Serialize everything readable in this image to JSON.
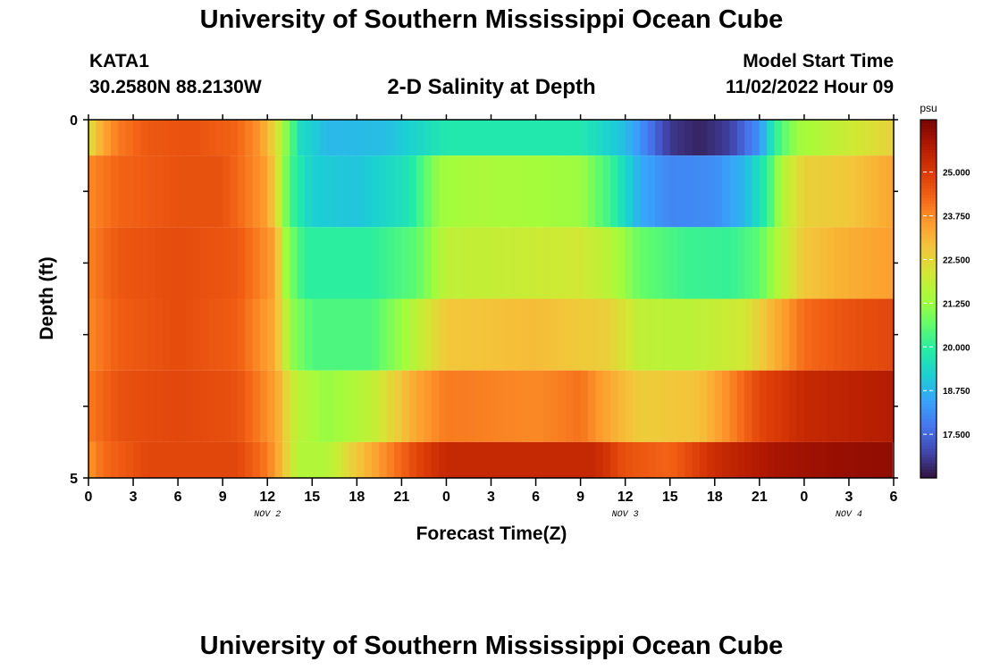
{
  "header": {
    "title": "University of Southern Mississippi Ocean Cube",
    "station": "KATA1",
    "coords": "30.2580N  88.2130W",
    "subtitle": "2-D Salinity at Depth",
    "model_start_label": "Model Start Time",
    "model_start_value": "11/02/2022 Hour 09"
  },
  "footer": {
    "title": "University of Southern Mississippi Ocean Cube"
  },
  "chart_data": {
    "type": "heatmap",
    "title": "2-D Salinity at Depth",
    "xlabel": "Forecast Time(Z)",
    "ylabel": "Depth (ft)",
    "x_tick_labels": [
      "0",
      "3",
      "6",
      "9",
      "12",
      "15",
      "18",
      "21",
      "0",
      "3",
      "6",
      "9",
      "12",
      "15",
      "18",
      "21",
      "0",
      "3",
      "6"
    ],
    "date_labels": [
      {
        "hour_index": 12,
        "label": "NOV 2"
      },
      {
        "hour_index": 36,
        "label": "NOV 3"
      },
      {
        "hour_index": 51,
        "label": "NOV 4"
      }
    ],
    "y_tick_labels": [
      {
        "depth": 0,
        "label": "0"
      },
      {
        "depth": 5,
        "label": "5"
      }
    ],
    "ylim": [
      0,
      5
    ],
    "forecast_hours": 54,
    "colorbar": {
      "unit": "psu",
      "min": 16.25,
      "max": 26.5,
      "ticks": [
        17.5,
        18.75,
        20.0,
        21.25,
        22.5,
        23.75,
        25.0
      ],
      "tick_labels": [
        "17.500",
        "18.750",
        "20.000",
        "21.250",
        "22.500",
        "23.750",
        "25.000"
      ],
      "colors": [
        "#30123b",
        "#4145ab",
        "#4675ed",
        "#39a2fc",
        "#1bcfd4",
        "#24eca6",
        "#61fc6c",
        "#a4fc3b",
        "#d1e834",
        "#f3c63a",
        "#fe9b2d",
        "#f36315",
        "#d93806",
        "#b11901",
        "#7a0403"
      ]
    },
    "rows": [
      {
        "depth_top": 0.0,
        "depth_bottom": 0.5,
        "knots": [
          [
            0,
            22.3
          ],
          [
            1,
            23.4
          ],
          [
            2,
            24.0
          ],
          [
            4,
            24.5
          ],
          [
            7,
            24.6
          ],
          [
            10,
            24.3
          ],
          [
            11.5,
            23.6
          ],
          [
            12.5,
            22.5
          ],
          [
            13.3,
            21.0
          ],
          [
            14.2,
            19.5
          ],
          [
            16,
            18.8
          ],
          [
            20,
            18.9
          ],
          [
            24,
            19.8
          ],
          [
            30,
            19.8
          ],
          [
            33,
            19.8
          ],
          [
            36,
            18.9
          ],
          [
            39,
            16.8
          ],
          [
            41,
            16.5
          ],
          [
            43,
            16.9
          ],
          [
            45,
            18.2
          ],
          [
            46,
            20.0
          ],
          [
            47.5,
            21.3
          ],
          [
            50,
            21.8
          ],
          [
            53,
            22.4
          ],
          [
            54,
            22.6
          ]
        ]
      },
      {
        "depth_top": 0.5,
        "depth_bottom": 1.5,
        "knots": [
          [
            0,
            23.8
          ],
          [
            2,
            24.3
          ],
          [
            6,
            24.6
          ],
          [
            9,
            24.6
          ],
          [
            12,
            23.5
          ],
          [
            12.8,
            22.0
          ],
          [
            13.5,
            20.3
          ],
          [
            15,
            19.2
          ],
          [
            18,
            19.0
          ],
          [
            21.5,
            19.7
          ],
          [
            23.5,
            21.3
          ],
          [
            26,
            21.5
          ],
          [
            33,
            21.3
          ],
          [
            35,
            20.2
          ],
          [
            37,
            18.6
          ],
          [
            39,
            18.0
          ],
          [
            42,
            18.1
          ],
          [
            44,
            18.8
          ],
          [
            45.5,
            20.0
          ],
          [
            46.5,
            21.6
          ],
          [
            48,
            22.6
          ],
          [
            51,
            22.8
          ],
          [
            54,
            23.4
          ]
        ]
      },
      {
        "depth_top": 1.5,
        "depth_bottom": 2.5,
        "knots": [
          [
            0,
            23.9
          ],
          [
            2,
            24.5
          ],
          [
            6,
            24.7
          ],
          [
            10,
            24.5
          ],
          [
            12.5,
            23.5
          ],
          [
            13.3,
            21.2
          ],
          [
            14.5,
            20.0
          ],
          [
            19,
            20.0
          ],
          [
            22,
            20.6
          ],
          [
            24,
            21.8
          ],
          [
            27,
            21.9
          ],
          [
            33,
            22.1
          ],
          [
            35,
            21.7
          ],
          [
            37,
            20.7
          ],
          [
            40,
            20.2
          ],
          [
            43,
            20.1
          ],
          [
            45,
            20.6
          ],
          [
            46.5,
            21.8
          ],
          [
            48,
            22.8
          ],
          [
            50.5,
            23.2
          ],
          [
            54,
            23.5
          ]
        ]
      },
      {
        "depth_top": 2.5,
        "depth_bottom": 3.5,
        "knots": [
          [
            0,
            23.8
          ],
          [
            2,
            24.4
          ],
          [
            6,
            24.7
          ],
          [
            10,
            24.4
          ],
          [
            12.5,
            23.3
          ],
          [
            13.6,
            21.2
          ],
          [
            15,
            20.4
          ],
          [
            19,
            20.4
          ],
          [
            21.5,
            21.5
          ],
          [
            24,
            22.8
          ],
          [
            30,
            23.0
          ],
          [
            35,
            22.6
          ],
          [
            37,
            21.8
          ],
          [
            40,
            21.7
          ],
          [
            44,
            22.1
          ],
          [
            46,
            23.2
          ],
          [
            48,
            24.2
          ],
          [
            51,
            24.6
          ],
          [
            54,
            24.8
          ]
        ]
      },
      {
        "depth_top": 3.5,
        "depth_bottom": 4.5,
        "knots": [
          [
            0,
            24.0
          ],
          [
            2,
            24.6
          ],
          [
            6,
            24.8
          ],
          [
            10,
            24.6
          ],
          [
            12.5,
            23.5
          ],
          [
            13.9,
            21.8
          ],
          [
            16,
            21.2
          ],
          [
            19,
            21.8
          ],
          [
            22,
            23.4
          ],
          [
            24,
            24.0
          ],
          [
            30,
            23.8
          ],
          [
            33,
            24.1
          ],
          [
            35,
            23.3
          ],
          [
            37,
            22.7
          ],
          [
            41,
            22.9
          ],
          [
            43,
            23.8
          ],
          [
            45,
            24.8
          ],
          [
            48,
            25.4
          ],
          [
            54,
            25.7
          ]
        ]
      },
      {
        "depth_top": 4.5,
        "depth_bottom": 5.0,
        "knots": [
          [
            0,
            23.6
          ],
          [
            1,
            24.2
          ],
          [
            4,
            24.8
          ],
          [
            10,
            24.8
          ],
          [
            12,
            24.0
          ],
          [
            13,
            23.0
          ],
          [
            14,
            21.6
          ],
          [
            16,
            21.6
          ],
          [
            18,
            22.8
          ],
          [
            20,
            23.8
          ],
          [
            22,
            24.8
          ],
          [
            24,
            25.4
          ],
          [
            30,
            25.4
          ],
          [
            34,
            25.4
          ],
          [
            36,
            24.6
          ],
          [
            39,
            24.3
          ],
          [
            42,
            25.3
          ],
          [
            46,
            25.9
          ],
          [
            50,
            26.1
          ],
          [
            53.9,
            26.2
          ]
        ]
      }
    ]
  }
}
